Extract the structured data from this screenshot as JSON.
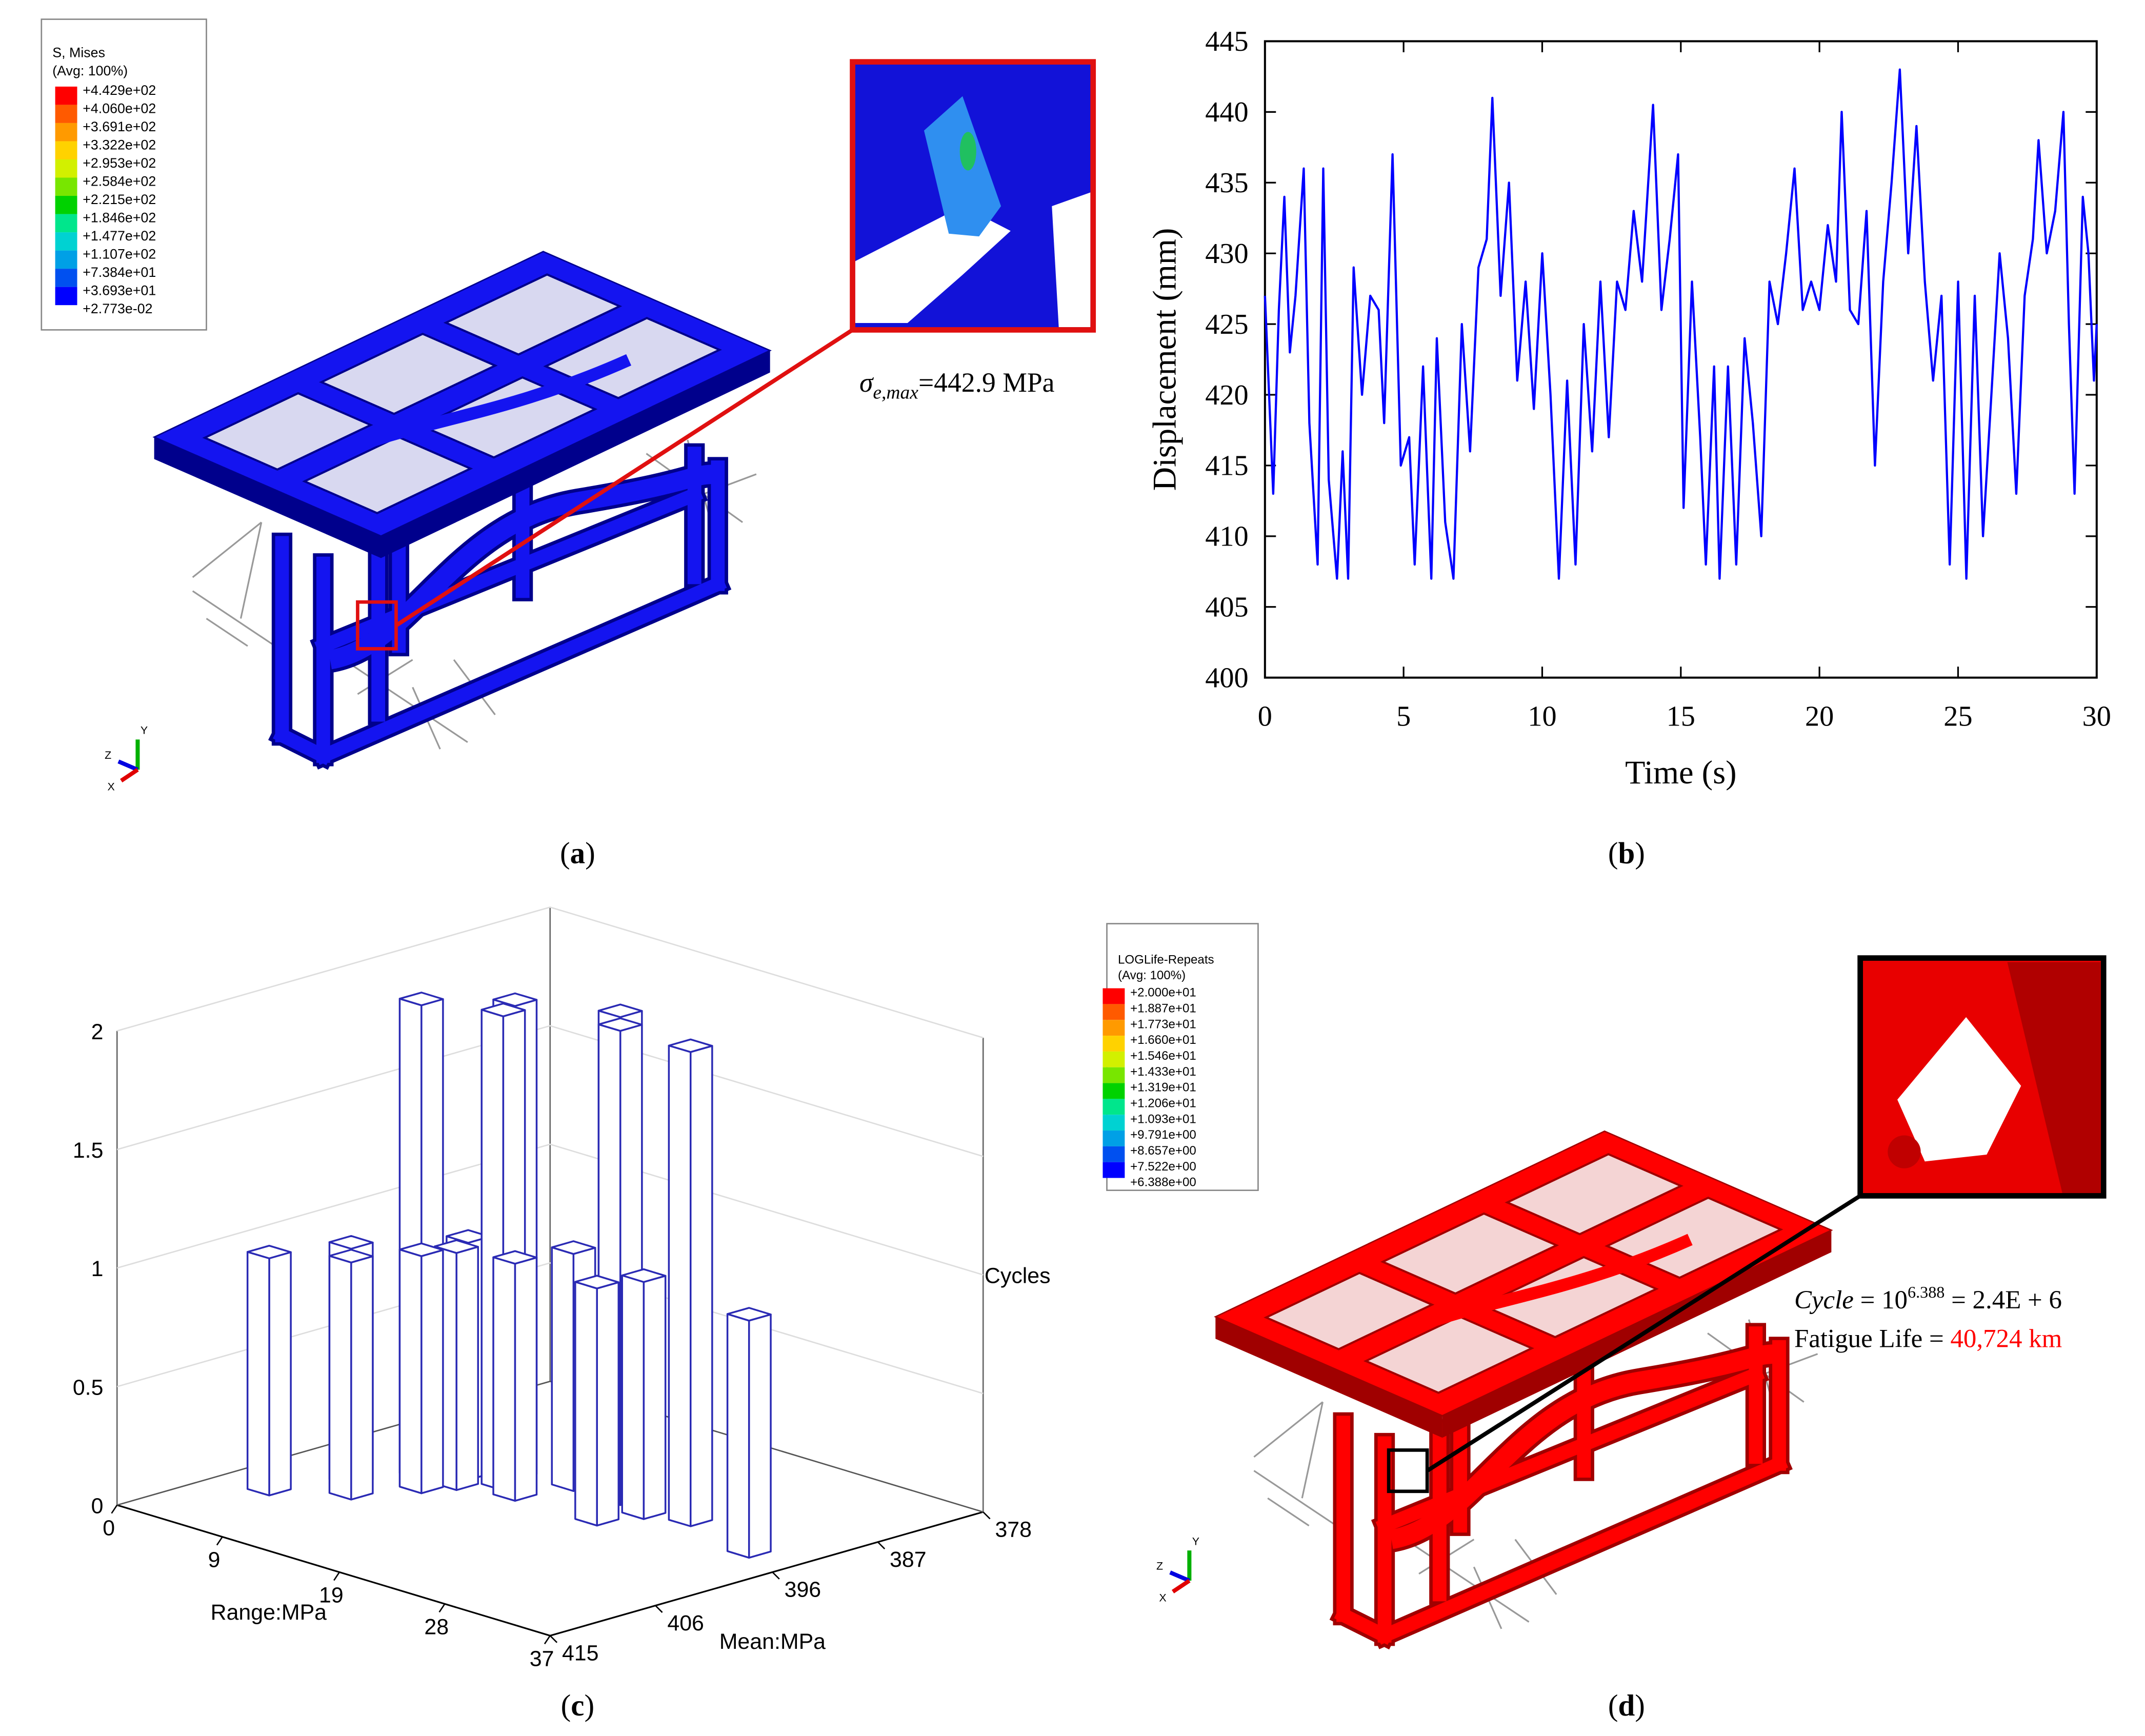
{
  "panel_labels": [
    {
      "open": "(",
      "letter": "a",
      "close": ")"
    },
    {
      "open": "(",
      "letter": "b",
      "close": ")"
    },
    {
      "open": "(",
      "letter": "c",
      "close": ")"
    },
    {
      "open": "(",
      "letter": "d",
      "close": ")"
    }
  ],
  "panel_a": {
    "legend": {
      "title": "S, Mises",
      "subtitle": "(Avg: 100%)",
      "labels": [
        "+4.429e+02",
        "+4.060e+02",
        "+3.691e+02",
        "+3.322e+02",
        "+2.953e+02",
        "+2.584e+02",
        "+2.215e+02",
        "+1.846e+02",
        "+1.477e+02",
        "+1.107e+02",
        "+7.384e+01",
        "+3.693e+01",
        "+2.773e-02"
      ],
      "colors": [
        "#ff0000",
        "#ff5a00",
        "#ff9a00",
        "#ffd200",
        "#d2f000",
        "#78e600",
        "#00d200",
        "#00e68c",
        "#00d2d2",
        "#00a0e6",
        "#0050f0",
        "#0000ff"
      ]
    },
    "annotation": {
      "symbol": "σ",
      "subscript": "e,max",
      "text": "=442.9 MPa"
    },
    "triad": {
      "y": "Y",
      "z": "Z",
      "x": "X"
    }
  },
  "panel_d": {
    "legend": {
      "title": "LOGLife-Repeats",
      "subtitle": "(Avg: 100%)",
      "labels": [
        "+2.000e+01",
        "+1.887e+01",
        "+1.773e+01",
        "+1.660e+01",
        "+1.546e+01",
        "+1.433e+01",
        "+1.319e+01",
        "+1.206e+01",
        "+1.093e+01",
        "+9.791e+00",
        "+8.657e+00",
        "+7.522e+00",
        "+6.388e+00"
      ],
      "colors": [
        "#ff0000",
        "#ff5a00",
        "#ff9a00",
        "#ffd200",
        "#d2f000",
        "#78e600",
        "#00d200",
        "#00e68c",
        "#00d2d2",
        "#00a0e6",
        "#0050f0",
        "#0000ff"
      ]
    },
    "cycle": {
      "name": "Cycle",
      "base": " = 10",
      "exponent": "6.388",
      "result": " = 2.4E + 6"
    },
    "fatigue": {
      "text": "Fatigue Life = ",
      "value": "40,724 km",
      "value_color": "#ff0000"
    },
    "triad": {
      "y": "Y",
      "z": "Z",
      "x": "X"
    }
  },
  "chart_data": [
    {
      "type": "line",
      "xlabel": "Time (s)",
      "ylabel": "Displacement (mm)",
      "xlim": [
        0,
        30
      ],
      "ylim": [
        400,
        445
      ],
      "xticks": [
        0,
        5,
        10,
        15,
        20,
        25,
        30
      ],
      "yticks": [
        400,
        405,
        410,
        415,
        420,
        425,
        430,
        435,
        440,
        445
      ],
      "x": [
        0,
        0.3,
        0.5,
        0.7,
        0.9,
        1.1,
        1.4,
        1.6,
        1.9,
        2.1,
        2.3,
        2.6,
        2.8,
        3.0,
        3.2,
        3.5,
        3.8,
        4.1,
        4.3,
        4.6,
        4.9,
        5.2,
        5.4,
        5.7,
        6.0,
        6.2,
        6.5,
        6.8,
        7.1,
        7.4,
        7.7,
        8.0,
        8.2,
        8.5,
        8.8,
        9.1,
        9.4,
        9.7,
        10.0,
        10.3,
        10.6,
        10.9,
        11.2,
        11.5,
        11.8,
        12.1,
        12.4,
        12.7,
        13.0,
        13.3,
        13.6,
        14.0,
        14.3,
        14.6,
        14.9,
        15.1,
        15.4,
        15.7,
        15.9,
        16.2,
        16.4,
        16.7,
        17.0,
        17.3,
        17.6,
        17.9,
        18.2,
        18.5,
        18.8,
        19.1,
        19.4,
        19.7,
        20.0,
        20.3,
        20.6,
        20.8,
        21.1,
        21.4,
        21.7,
        22.0,
        22.3,
        22.6,
        22.9,
        23.2,
        23.5,
        23.8,
        24.1,
        24.4,
        24.7,
        25.0,
        25.3,
        25.6,
        25.9,
        26.2,
        26.5,
        26.8,
        27.1,
        27.4,
        27.7,
        27.9,
        28.2,
        28.5,
        28.8,
        29.0,
        29.2,
        29.5,
        29.7,
        29.9,
        30.0
      ],
      "series": [
        {
          "color": "#0000ff",
          "values": [
            427,
            413,
            426,
            434,
            423,
            427,
            436,
            418,
            408,
            436,
            414,
            407,
            416,
            407,
            429,
            420,
            427,
            426,
            418,
            437,
            415,
            417,
            408,
            422,
            407,
            424,
            411,
            407,
            425,
            416,
            429,
            431,
            441,
            427,
            435,
            421,
            428,
            419,
            430,
            420,
            407,
            421,
            408,
            425,
            416,
            428,
            417,
            428,
            426,
            433,
            428,
            440.5,
            426,
            431,
            437,
            412,
            428,
            417,
            408,
            422,
            407,
            422,
            408,
            424,
            418,
            410,
            428,
            425,
            430,
            436,
            426,
            428,
            426,
            432,
            428,
            440,
            426,
            425,
            433,
            415,
            428,
            435,
            443,
            430,
            439,
            428,
            421,
            427,
            408,
            428,
            407,
            427,
            410,
            420,
            430,
            424,
            413,
            427,
            431,
            438,
            430,
            433,
            440,
            425,
            413,
            434,
            430,
            421,
            425
          ]
        }
      ]
    },
    {
      "type": "bar3d",
      "zlabel": "Cycles",
      "xlabel": "Range:MPa",
      "ylabel": "Mean:MPa",
      "zlim": [
        0,
        2
      ],
      "zticks": [
        0,
        0.5,
        1,
        1.5,
        2
      ],
      "xlim": [
        0,
        37
      ],
      "xticks": [
        0,
        9,
        19,
        28,
        37
      ],
      "ylim": [
        378,
        415
      ],
      "yticks": [
        378,
        387,
        396,
        406,
        415
      ],
      "color": "#2a2ab4",
      "range": [
        4,
        6,
        8,
        8,
        10,
        10,
        12,
        13,
        11,
        15,
        16,
        18,
        20,
        22,
        23,
        26,
        33
      ],
      "mean": [
        406,
        401,
        403,
        397,
        399,
        395,
        393,
        395,
        397,
        396,
        392,
        390,
        392,
        396,
        393,
        392,
        394
      ],
      "values": [
        1,
        1,
        1,
        2,
        1,
        1,
        2,
        2,
        1,
        1,
        1,
        2,
        2,
        1,
        1,
        2,
        1
      ]
    }
  ]
}
